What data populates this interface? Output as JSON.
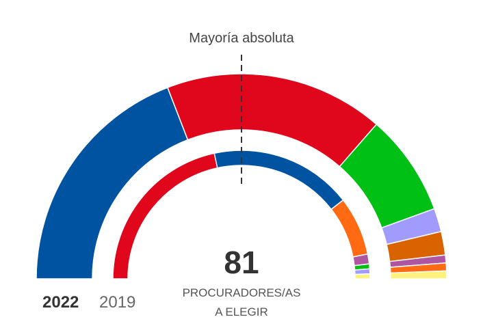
{
  "chart_data": {
    "type": "pie",
    "variant": "parliament-semicircle",
    "total_seats": 81,
    "total_label": "81",
    "subtitle_line1": "PROCURADORES/AS",
    "subtitle_line2": "A ELEGIR",
    "majority_label": "Mayoría absoluta",
    "majority_seats": 41,
    "rings": [
      {
        "year": "2022",
        "seats": [
          31,
          28,
          13,
          3,
          3,
          1,
          1,
          1
        ]
      },
      {
        "year": "2019",
        "seats": [
          35,
          29,
          12,
          2,
          1,
          1,
          1
        ]
      }
    ],
    "colors_2022": [
      "#0053a0",
      "#e0061b",
      "#00c016",
      "#a29bfe",
      "#d96300",
      "#b0559f",
      "#ff6a13",
      "#fff27a"
    ],
    "colors_2019": [
      "#e0061b",
      "#0053a0",
      "#ff6a13",
      "#b0559f",
      "#00c016",
      "#a29bfe",
      "#fff27a"
    ]
  },
  "legend": {
    "current_year": "2022",
    "previous_year": "2019"
  }
}
